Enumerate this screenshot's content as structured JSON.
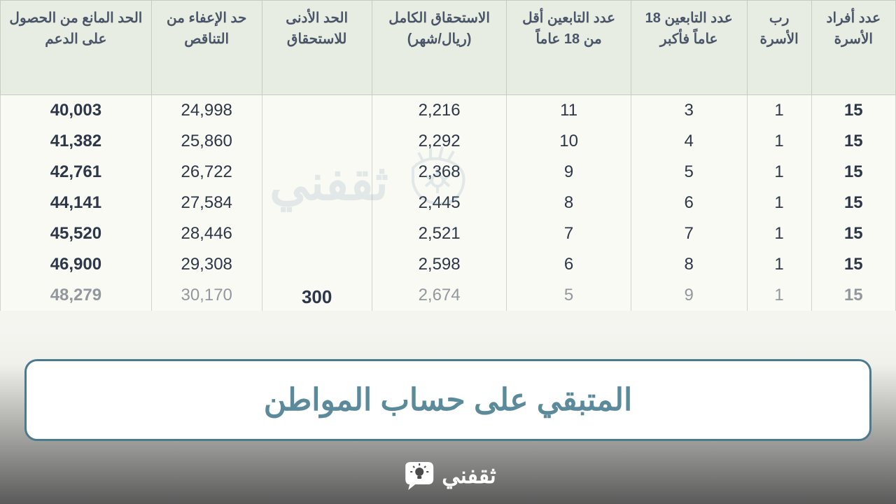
{
  "table": {
    "headers": [
      "عدد أفراد الأسرة",
      "رب الأسرة",
      "عدد التابعين 18 عاماً فأكبر",
      "عدد التابعين أقل من 18 عاماً",
      "الاستحقاق الكامل (ريال/شهر)",
      "الحد الأدنى للاستحقاق",
      "حد الإعفاء من التناقص",
      "الحد المانع من الحصول على الدعم"
    ],
    "min_entitlement": "300",
    "rows": [
      {
        "family": "15",
        "head": "1",
        "over18": "3",
        "under18": "11",
        "full": "2,216",
        "exemption": "24,998",
        "max": "40,003",
        "faded": false
      },
      {
        "family": "15",
        "head": "1",
        "over18": "4",
        "under18": "10",
        "full": "2,292",
        "exemption": "25,860",
        "max": "41,382",
        "faded": false
      },
      {
        "family": "15",
        "head": "1",
        "over18": "5",
        "under18": "9",
        "full": "2,368",
        "exemption": "26,722",
        "max": "42,761",
        "faded": false
      },
      {
        "family": "15",
        "head": "1",
        "over18": "6",
        "under18": "8",
        "full": "2,445",
        "exemption": "27,584",
        "max": "44,141",
        "faded": false
      },
      {
        "family": "15",
        "head": "1",
        "over18": "7",
        "under18": "7",
        "full": "2,521",
        "exemption": "28,446",
        "max": "45,520",
        "faded": false
      },
      {
        "family": "15",
        "head": "1",
        "over18": "8",
        "under18": "6",
        "full": "2,598",
        "exemption": "29,308",
        "max": "46,900",
        "faded": false
      },
      {
        "family": "15",
        "head": "1",
        "over18": "9",
        "under18": "5",
        "full": "2,674",
        "exemption": "30,170",
        "max": "48,279",
        "faded": true
      }
    ],
    "header_bg": "#e8ede3",
    "header_color": "#4a5568",
    "cell_color": "#2d3748",
    "border_color": "#c5cdc0",
    "font_family": "Arial, Tahoma",
    "header_fontsize": 20,
    "cell_fontsize": 24
  },
  "banner": {
    "text": "المتبقي على حساب المواطن",
    "bg": "#ffffff",
    "border": "#4a7a8c",
    "text_color": "#5b8a9a",
    "fontsize": 44
  },
  "footer": {
    "logo_text": "ثقفني",
    "text_color": "#ffffff",
    "icon_color": "#ffffff"
  },
  "watermark": {
    "text": "ثقفني",
    "color": "#5b8a9a",
    "opacity": 0.15
  }
}
